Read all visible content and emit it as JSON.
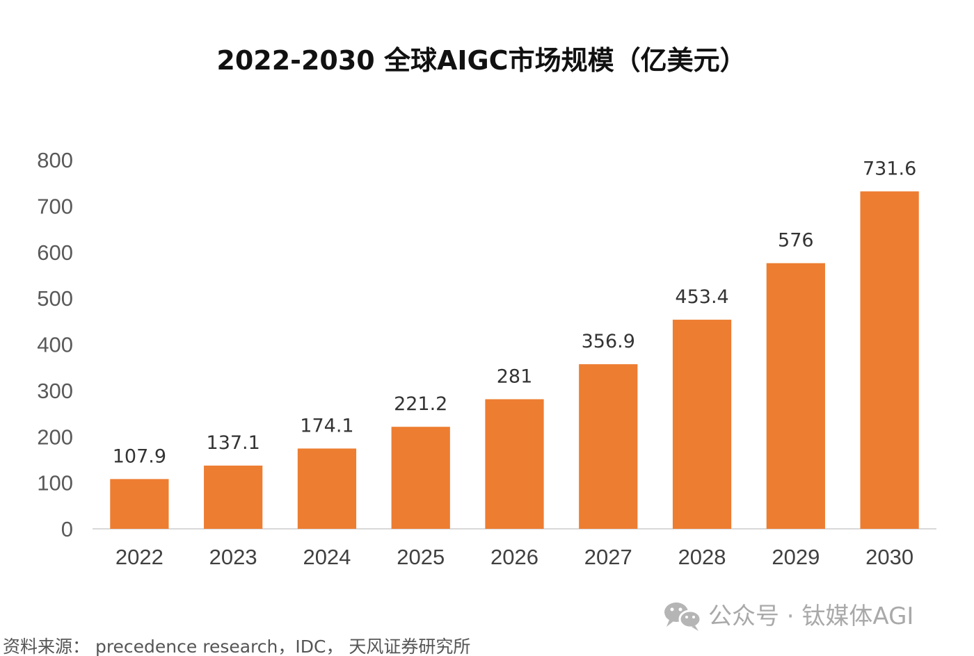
{
  "chart_data": {
    "type": "bar",
    "title": "2022-2030 全球AIGC市场规模（亿美元）",
    "categories": [
      "2022",
      "2023",
      "2024",
      "2025",
      "2026",
      "2027",
      "2028",
      "2029",
      "2030"
    ],
    "values": [
      107.9,
      137.1,
      174.1,
      221.2,
      281,
      356.9,
      453.4,
      576,
      731.6
    ],
    "data_labels": [
      "107.9",
      "137.1",
      "174.1",
      "221.2",
      "281",
      "356.9",
      "453.4",
      "576",
      "731.6"
    ],
    "xlabel": "",
    "ylabel": "",
    "ylim": [
      0,
      800
    ],
    "yticks": [
      0,
      100,
      200,
      300,
      400,
      500,
      600,
      700,
      800
    ],
    "grid": false,
    "legend": "none",
    "bar_color": "#ED7D31"
  },
  "source_note": "资料来源： precedence research，IDC， 天风证券研究所",
  "watermark": {
    "text": "公众号 · 钛媒体AGI",
    "icon": "wechat-icon"
  }
}
